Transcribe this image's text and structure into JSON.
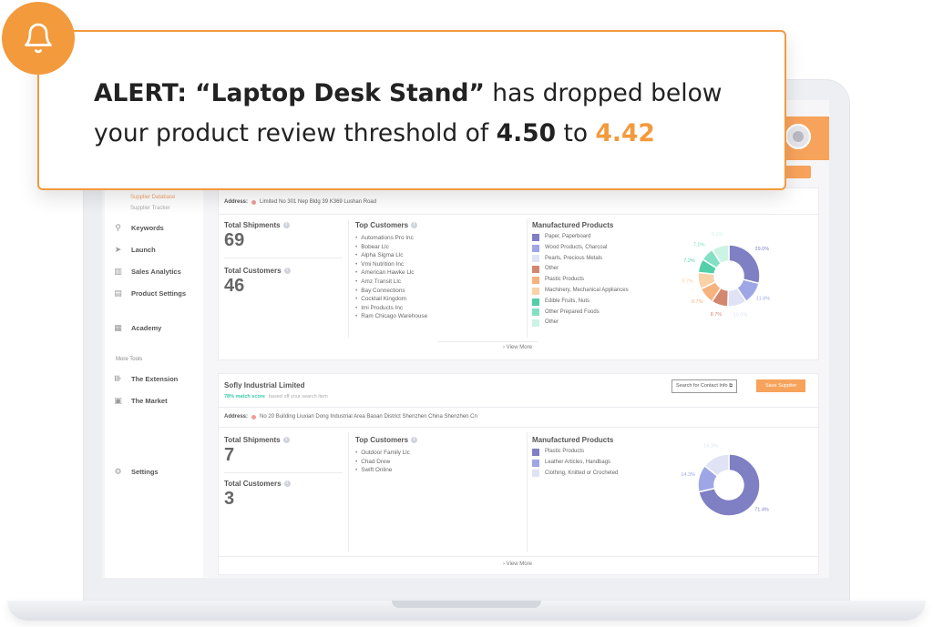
{
  "alert": {
    "prefix": "ALERT: “Laptop Desk Stand”",
    "middle": " has dropped below your product review threshold of ",
    "threshold": "4.50",
    "connector": " to ",
    "current": "4.42",
    "icon": "bell-icon"
  },
  "sidebar": {
    "sub_items": [
      "Supplier Database",
      "Supplier Tracker"
    ],
    "items": [
      {
        "label": "Keywords",
        "icon": "keywords-icon"
      },
      {
        "label": "Launch",
        "icon": "launch-icon"
      },
      {
        "label": "Sales Analytics",
        "icon": "analytics-icon"
      },
      {
        "label": "Product Settings",
        "icon": "settings-box-icon"
      },
      {
        "label": "Academy",
        "icon": "academy-icon"
      }
    ],
    "section_title": "More Tools",
    "tools": [
      {
        "label": "The Extension",
        "icon": "extension-icon"
      },
      {
        "label": "The Market",
        "icon": "market-icon"
      }
    ],
    "settings_label": "Settings"
  },
  "supplier1": {
    "address_label": "Address:",
    "address": "Limited No 301 Nep Bldg 39 K369 Lushan Road",
    "total_shipments_label": "Total Shipments",
    "total_shipments": "69",
    "total_customers_label": "Total Customers",
    "total_customers": "46",
    "top_customers_label": "Top Customers",
    "top_customers": [
      "Automations Pro Inc",
      "Bobear Llc",
      "Alpha Sigma Llc",
      "Vmi Nutrition Inc",
      "American Hawke Llc",
      "Amz Transit Llc",
      "Bay Connections",
      "Cocktail Kingdom",
      "Imi Products Inc",
      "Ram Chicago Warehouse"
    ],
    "manufactured_label": "Manufactured Products",
    "products": [
      {
        "name": "Paper, Paperboard",
        "color": "#7f7fc4"
      },
      {
        "name": "Wood Products, Charcoal",
        "color": "#9ea6e6"
      },
      {
        "name": "Pearls, Precious Metals",
        "color": "#dfe3f5"
      },
      {
        "name": "Other",
        "color": "#d4876f"
      },
      {
        "name": "Plastic Products",
        "color": "#f6b27e"
      },
      {
        "name": "Machinery, Mechanical Appliances",
        "color": "#f9d2a8"
      },
      {
        "name": "Edible Fruits, Nuts",
        "color": "#52cfa8"
      },
      {
        "name": "Other Prepared Foods",
        "color": "#84e0c3"
      },
      {
        "name": "Other",
        "color": "#cdf3e5"
      }
    ],
    "view_more": "View More"
  },
  "supplier2": {
    "name": "Sofly Industrial Limited",
    "match": "78% match score",
    "match_note": "based off your search item",
    "contact_button": "Search for Contact Info",
    "save_button": "Save Supplier",
    "address_label": "Address:",
    "address": "No 20 Building Liuxian Dong Industrial Area Baoan District Shenzhen China Shenzhen Cn",
    "total_shipments_label": "Total Shipments",
    "total_shipments": "7",
    "total_customers_label": "Total Customers",
    "total_customers": "3",
    "top_customers_label": "Top Customers",
    "top_customers": [
      "Outdoor Family Llc",
      "Chad Drew",
      "Swift Online"
    ],
    "manufactured_label": "Manufactured Products",
    "products": [
      {
        "name": "Plastic Products",
        "color": "#7f7fc4"
      },
      {
        "name": "Leather Articles, Handbags",
        "color": "#9ea6e6"
      },
      {
        "name": "Clothing, Knitted or Crocheted",
        "color": "#dfe3f5"
      }
    ],
    "view_more": "View More"
  },
  "chart_data": [
    {
      "type": "pie",
      "categories": [
        "Paper, Paperboard",
        "Wood Products, Charcoal",
        "Pearls, Precious Metals",
        "Other",
        "Plastic Products",
        "Machinery, Mechanical Appliances",
        "Edible Fruits, Nuts",
        "Other Prepared Foods",
        "Other"
      ],
      "values": [
        29.0,
        11.6,
        10.0,
        8.7,
        8.7,
        8.7,
        7.2,
        7.0,
        9.1
      ],
      "labels": [
        "29.0%",
        "11.6%",
        "10.0%",
        "8.7%",
        "8.7%",
        "8.7%",
        "7.2%",
        "7.0%",
        "9.1%"
      ]
    },
    {
      "type": "pie",
      "categories": [
        "Plastic Products",
        "Leather Articles, Handbags",
        "Clothing, Knitted or Crocheted"
      ],
      "values": [
        71.4,
        14.3,
        14.3
      ],
      "labels": [
        "71.4%",
        "14.3%",
        "14.3%"
      ]
    }
  ]
}
